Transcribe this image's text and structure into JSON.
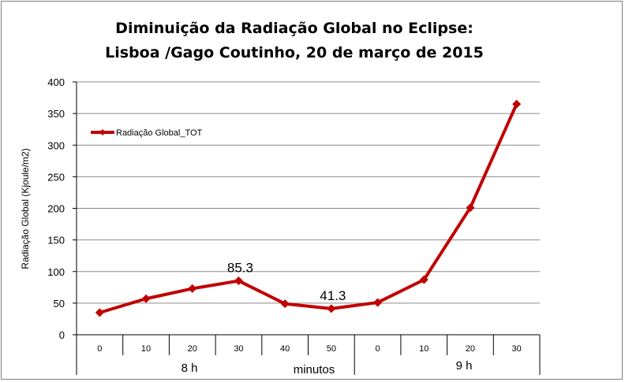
{
  "chart_data": {
    "type": "line",
    "title_line1": "Diminuição da Radiação Global no Eclipse:",
    "title_line2": "Lisboa /Gago Coutinho, 20 de março de 2015",
    "ylabel": "Radiação Global (Kjoule/m2)",
    "ylim": [
      0,
      400
    ],
    "yticks": [
      "0",
      "50",
      "100",
      "150",
      "200",
      "250",
      "300",
      "350",
      "400"
    ],
    "categories": [
      "0",
      "10",
      "20",
      "30",
      "40",
      "50",
      "0",
      "10",
      "20",
      "30"
    ],
    "groups": [
      {
        "label": "8 h",
        "start": 0,
        "end": 5
      },
      {
        "label": "9 h",
        "start": 6,
        "end": 9
      }
    ],
    "axis_middle_label": "minutos",
    "series": [
      {
        "name": "Radiação Global_TOT",
        "values": [
          35,
          57,
          73,
          85.3,
          49,
          41.3,
          51,
          87,
          201,
          365
        ]
      }
    ],
    "data_labels": [
      {
        "index": 3,
        "text": "85.3"
      },
      {
        "index": 5,
        "text": "41.3"
      }
    ],
    "grid": true,
    "legend_position": "top-left",
    "colors": {
      "series": "#c00000",
      "grid": "#8c8c8c",
      "axis": "#000000"
    }
  }
}
